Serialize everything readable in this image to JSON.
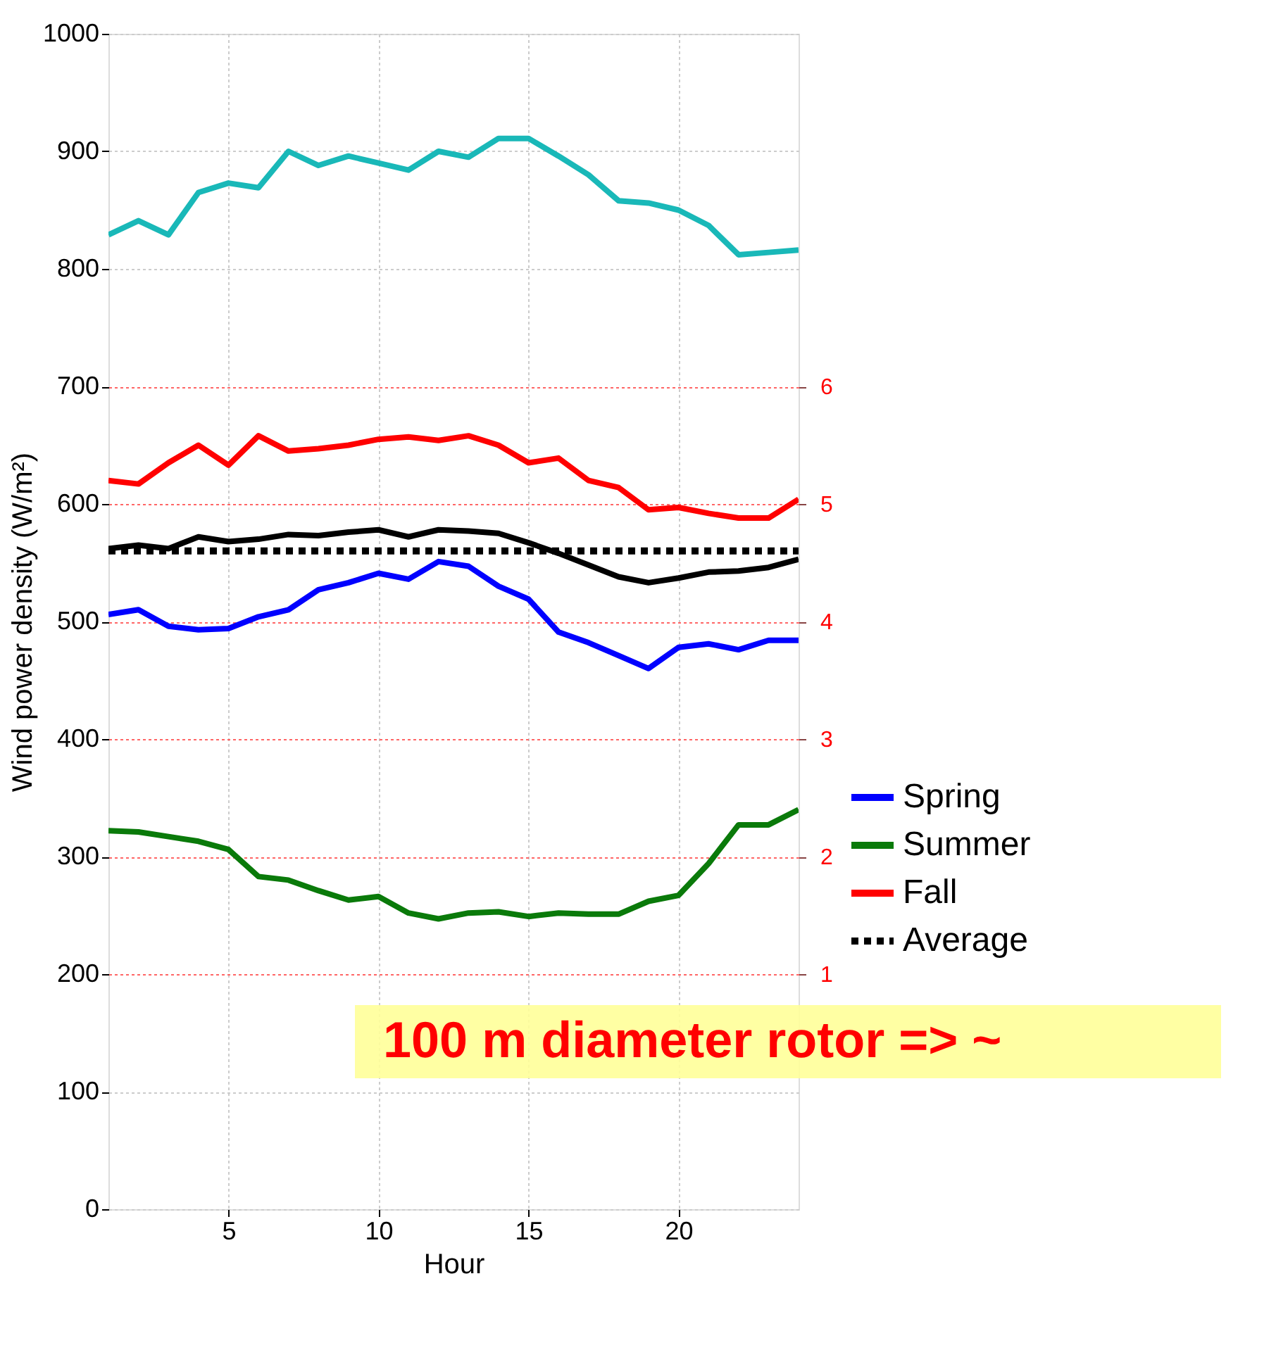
{
  "chart_data": {
    "type": "line",
    "xlabel": "Hour",
    "ylabel": "Wind power density (W/m²)",
    "x": [
      1,
      2,
      3,
      4,
      5,
      6,
      7,
      8,
      9,
      10,
      11,
      12,
      13,
      14,
      15,
      16,
      17,
      18,
      19,
      20,
      21,
      22,
      23,
      24
    ],
    "series": [
      {
        "name": "Spring",
        "color": "#0000ff",
        "values": [
          506,
          510,
          496,
          493,
          494,
          504,
          510,
          527,
          533,
          541,
          536,
          551,
          547,
          530,
          519,
          491,
          482,
          471,
          460,
          478,
          481,
          476,
          484,
          484
        ]
      },
      {
        "name": "Summer",
        "color": "#0a7a0a",
        "values": [
          322,
          321,
          317,
          313,
          306,
          283,
          280,
          271,
          263,
          266,
          252,
          247,
          252,
          253,
          249,
          252,
          251,
          251,
          262,
          267,
          294,
          327,
          327,
          340
        ]
      },
      {
        "name": "Fall",
        "color": "#ff0000",
        "values": [
          620,
          617,
          635,
          650,
          633,
          658,
          645,
          647,
          650,
          655,
          657,
          654,
          658,
          650,
          635,
          639,
          620,
          614,
          595,
          597,
          592,
          588,
          588,
          604
        ]
      },
      {
        "color": "#19b8b8",
        "values": [
          829,
          841,
          829,
          865,
          873,
          869,
          900,
          888,
          896,
          890,
          884,
          900,
          895,
          911,
          911,
          896,
          880,
          858,
          856,
          850,
          837,
          812,
          814,
          816
        ]
      },
      {
        "color": "#000000",
        "values": [
          562,
          565,
          562,
          572,
          568,
          570,
          574,
          573,
          576,
          578,
          572,
          578,
          577,
          575,
          567,
          558,
          548,
          538,
          533,
          537,
          542,
          543,
          546,
          553
        ]
      },
      {
        "name": "Average",
        "color": "#000000",
        "line_style": "dotted",
        "values": [
          560,
          560,
          560,
          560,
          560,
          560,
          560,
          560,
          560,
          560,
          560,
          560,
          560,
          560,
          560,
          560,
          560,
          560,
          560,
          560,
          560,
          560,
          560,
          560
        ]
      }
    ],
    "xlim": [
      1,
      24
    ],
    "xticks": [
      5,
      10,
      15,
      20
    ],
    "ylim": [
      0,
      1000
    ],
    "yticks": [
      0,
      100,
      200,
      300,
      400,
      500,
      600,
      700,
      800,
      900,
      1000
    ],
    "y2lim": [
      -1,
      9
    ],
    "y2ticks": [
      1,
      2,
      3,
      4,
      5,
      6
    ],
    "grid": true,
    "legend": "right",
    "annotations": [
      "100 m diameter rotor =>  ~"
    ]
  }
}
